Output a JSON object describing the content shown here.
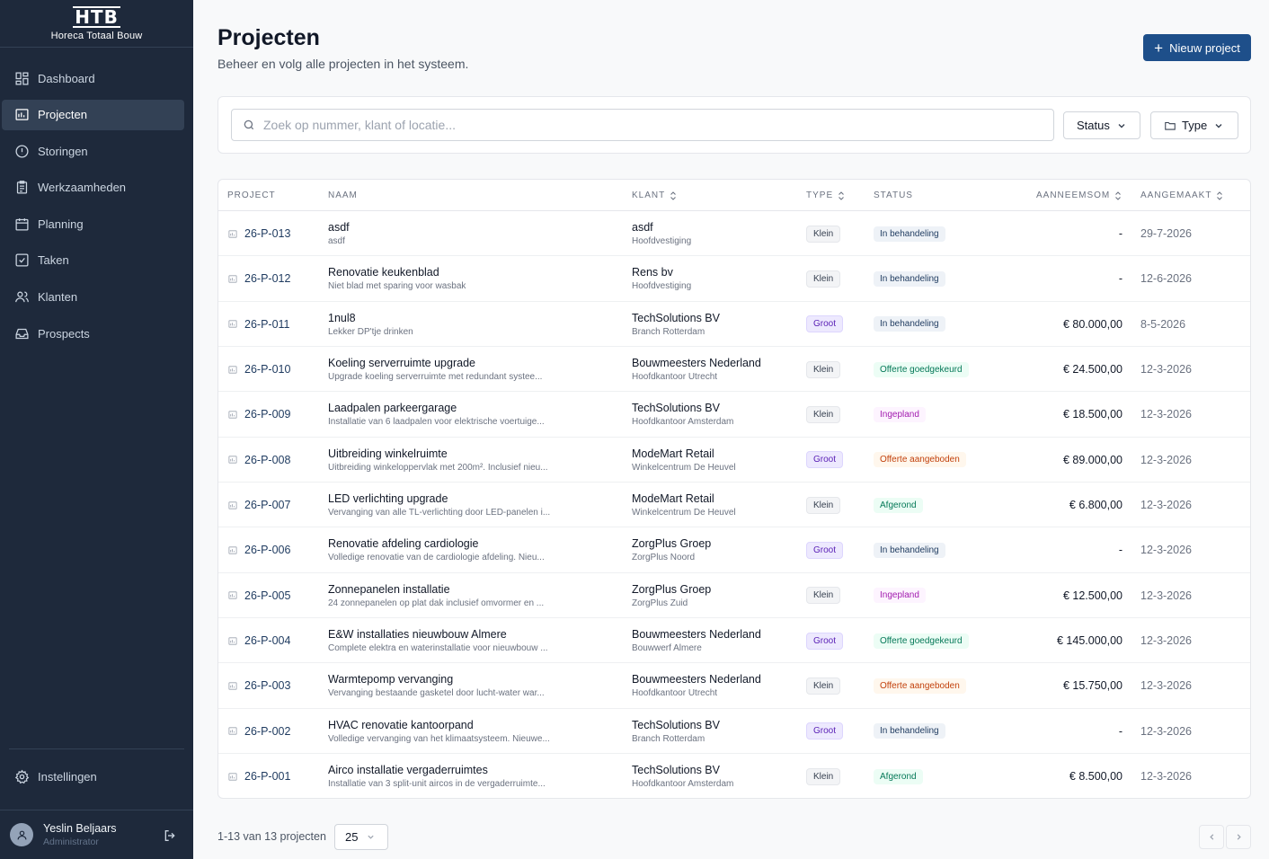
{
  "brand": {
    "mark": "HTB",
    "name": "Horeca Totaal Bouw"
  },
  "sidebar": {
    "items": [
      {
        "label": "Dashboard",
        "icon": "dashboard-icon"
      },
      {
        "label": "Projecten",
        "icon": "folder-icon",
        "active": true
      },
      {
        "label": "Storingen",
        "icon": "alert-circle-icon"
      },
      {
        "label": "Werkzaamheden",
        "icon": "clipboard-icon"
      },
      {
        "label": "Planning",
        "icon": "calendar-icon"
      },
      {
        "label": "Taken",
        "icon": "checkbox-icon"
      },
      {
        "label": "Klanten",
        "icon": "users-icon"
      },
      {
        "label": "Prospects",
        "icon": "inbox-icon"
      }
    ],
    "settings_label": "Instellingen",
    "user": {
      "name": "Yeslin Beljaars",
      "role": "Administrator"
    }
  },
  "header": {
    "title": "Projecten",
    "subtitle": "Beheer en volg alle projecten in het systeem.",
    "new_button": "Nieuw project"
  },
  "filters": {
    "search_placeholder": "Zoek op nummer, klant of locatie...",
    "status_label": "Status",
    "type_label": "Type"
  },
  "table": {
    "columns": [
      "Project",
      "Naam",
      "Klant",
      "Type",
      "Status",
      "Aanneemsom",
      "Aangemaakt"
    ],
    "rows": [
      {
        "id": "26-P-013",
        "name": "asdf",
        "desc": "asdf",
        "client": "asdf",
        "location": "Hoofdvestiging",
        "type": "Klein",
        "status": "In behandeling",
        "amount": "-",
        "date": "29-7-2026"
      },
      {
        "id": "26-P-012",
        "name": "Renovatie keukenblad",
        "desc": "Niet blad met sparing voor wasbak",
        "client": "Rens bv",
        "location": "Hoofdvestiging",
        "type": "Klein",
        "status": "In behandeling",
        "amount": "-",
        "date": "12-6-2026"
      },
      {
        "id": "26-P-011",
        "name": "1nul8",
        "desc": "Lekker DP'tje drinken",
        "client": "TechSolutions BV",
        "location": "Branch Rotterdam",
        "type": "Groot",
        "status": "In behandeling",
        "amount": "€ 80.000,00",
        "date": "8-5-2026"
      },
      {
        "id": "26-P-010",
        "name": "Koeling serverruimte upgrade",
        "desc": "Upgrade koeling serverruimte met redundant systee...",
        "client": "Bouwmeesters Nederland",
        "location": "Hoofdkantoor Utrecht",
        "type": "Klein",
        "status": "Offerte goedgekeurd",
        "amount": "€ 24.500,00",
        "date": "12-3-2026"
      },
      {
        "id": "26-P-009",
        "name": "Laadpalen parkeergarage",
        "desc": "Installatie van 6 laadpalen voor elektrische voertuige...",
        "client": "TechSolutions BV",
        "location": "Hoofdkantoor Amsterdam",
        "type": "Klein",
        "status": "Ingepland",
        "amount": "€ 18.500,00",
        "date": "12-3-2026"
      },
      {
        "id": "26-P-008",
        "name": "Uitbreiding winkelruimte",
        "desc": "Uitbreiding winkeloppervlak met 200m². Inclusief nieu...",
        "client": "ModeMart Retail",
        "location": "Winkelcentrum De Heuvel",
        "type": "Groot",
        "status": "Offerte aangeboden",
        "amount": "€ 89.000,00",
        "date": "12-3-2026"
      },
      {
        "id": "26-P-007",
        "name": "LED verlichting upgrade",
        "desc": "Vervanging van alle TL-verlichting door LED-panelen i...",
        "client": "ModeMart Retail",
        "location": "Winkelcentrum De Heuvel",
        "type": "Klein",
        "status": "Afgerond",
        "amount": "€ 6.800,00",
        "date": "12-3-2026"
      },
      {
        "id": "26-P-006",
        "name": "Renovatie afdeling cardiologie",
        "desc": "Volledige renovatie van de cardiologie afdeling. Nieu...",
        "client": "ZorgPlus Groep",
        "location": "ZorgPlus Noord",
        "type": "Groot",
        "status": "In behandeling",
        "amount": "-",
        "date": "12-3-2026"
      },
      {
        "id": "26-P-005",
        "name": "Zonnepanelen installatie",
        "desc": "24 zonnepanelen op plat dak inclusief omvormer en ...",
        "client": "ZorgPlus Groep",
        "location": "ZorgPlus Zuid",
        "type": "Klein",
        "status": "Ingepland",
        "amount": "€ 12.500,00",
        "date": "12-3-2026"
      },
      {
        "id": "26-P-004",
        "name": "E&W installaties nieuwbouw Almere",
        "desc": "Complete elektra en waterinstallatie voor nieuwbouw ...",
        "client": "Bouwmeesters Nederland",
        "location": "Bouwwerf Almere",
        "type": "Groot",
        "status": "Offerte goedgekeurd",
        "amount": "€ 145.000,00",
        "date": "12-3-2026"
      },
      {
        "id": "26-P-003",
        "name": "Warmtepomp vervanging",
        "desc": "Vervanging bestaande gasketel door lucht-water war...",
        "client": "Bouwmeesters Nederland",
        "location": "Hoofdkantoor Utrecht",
        "type": "Klein",
        "status": "Offerte aangeboden",
        "amount": "€ 15.750,00",
        "date": "12-3-2026"
      },
      {
        "id": "26-P-002",
        "name": "HVAC renovatie kantoorpand",
        "desc": "Volledige vervanging van het klimaatsysteem. Nieuwe...",
        "client": "TechSolutions BV",
        "location": "Branch Rotterdam",
        "type": "Groot",
        "status": "In behandeling",
        "amount": "-",
        "date": "12-3-2026"
      },
      {
        "id": "26-P-001",
        "name": "Airco installatie vergaderruimtes",
        "desc": "Installatie van 3 split-unit aircos in de vergaderruimte...",
        "client": "TechSolutions BV",
        "location": "Hoofdkantoor Amsterdam",
        "type": "Klein",
        "status": "Afgerond",
        "amount": "€ 8.500,00",
        "date": "12-3-2026"
      }
    ]
  },
  "footer": {
    "count_text": "1-13 van 13 projecten",
    "per_page": "25"
  }
}
